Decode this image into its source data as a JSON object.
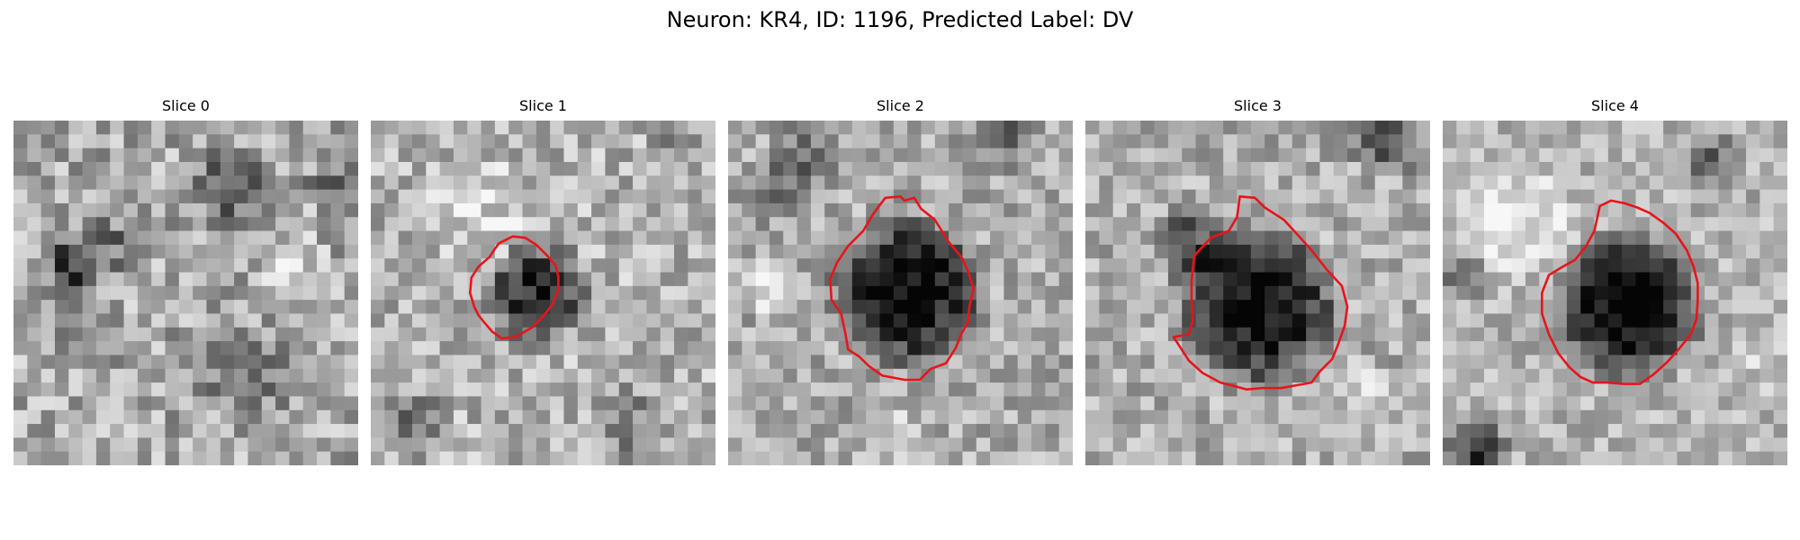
{
  "title": "Neuron: KR4, ID: 1196, Predicted Label: DV",
  "contour_color": "#e8141b",
  "colormap": "gray",
  "slices": [
    {
      "label": "Slice 0",
      "has_contour": false
    },
    {
      "label": "Slice 1",
      "has_contour": true
    },
    {
      "label": "Slice 2",
      "has_contour": true
    },
    {
      "label": "Slice 3",
      "has_contour": true
    },
    {
      "label": "Slice 4",
      "has_contour": true
    }
  ]
}
